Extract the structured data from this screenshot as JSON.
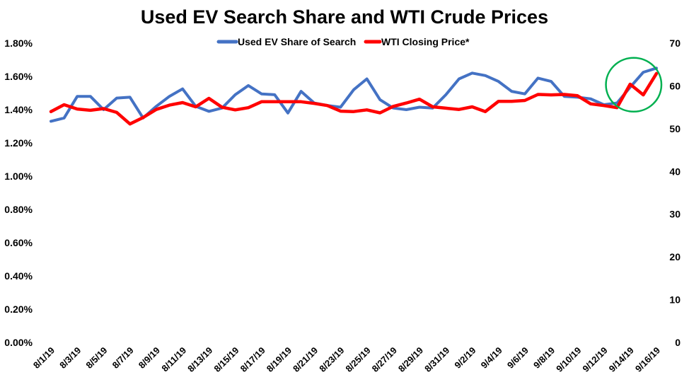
{
  "chart_data": {
    "type": "line",
    "title": "Used EV Search Share and WTI Crude Prices",
    "legend_position": "top",
    "grid": false,
    "x": [
      "8/1/19",
      "8/2/19",
      "8/3/19",
      "8/4/19",
      "8/5/19",
      "8/6/19",
      "8/7/19",
      "8/8/19",
      "8/9/19",
      "8/10/19",
      "8/11/19",
      "8/12/19",
      "8/13/19",
      "8/14/19",
      "8/15/19",
      "8/16/19",
      "8/17/19",
      "8/18/19",
      "8/19/19",
      "8/20/19",
      "8/21/19",
      "8/22/19",
      "8/23/19",
      "8/24/19",
      "8/25/19",
      "8/26/19",
      "8/27/19",
      "8/28/19",
      "8/29/19",
      "8/30/19",
      "8/31/19",
      "9/1/19",
      "9/2/19",
      "9/3/19",
      "9/4/19",
      "9/5/19",
      "9/6/19",
      "9/7/19",
      "9/8/19",
      "9/9/19",
      "9/10/19",
      "9/11/19",
      "9/12/19",
      "9/13/19",
      "9/14/19",
      "9/15/19",
      "9/16/19"
    ],
    "x_tick_labels": [
      "8/1/19",
      "8/3/19",
      "8/5/19",
      "8/7/19",
      "8/9/19",
      "8/11/19",
      "8/13/19",
      "8/15/19",
      "8/17/19",
      "8/19/19",
      "8/21/19",
      "8/23/19",
      "8/25/19",
      "8/27/19",
      "8/29/19",
      "8/31/19",
      "9/2/19",
      "9/4/19",
      "9/6/19",
      "9/8/19",
      "9/10/19",
      "9/12/19",
      "9/14/19",
      "9/16/19"
    ],
    "y_left": {
      "ylim": [
        0,
        1.8
      ],
      "ticks": [
        "0.00%",
        "0.20%",
        "0.40%",
        "0.60%",
        "0.80%",
        "1.00%",
        "1.20%",
        "1.40%",
        "1.60%",
        "1.80%"
      ]
    },
    "y_right": {
      "ylim": [
        0,
        70
      ],
      "ticks": [
        "0",
        "10",
        "20",
        "30",
        "40",
        "50",
        "60",
        "70"
      ]
    },
    "series": [
      {
        "name": "Used EV Share of Search",
        "axis": "left",
        "color": "#4472C4",
        "values": [
          1.33,
          1.35,
          1.48,
          1.48,
          1.4,
          1.47,
          1.475,
          1.35,
          1.42,
          1.48,
          1.525,
          1.42,
          1.39,
          1.41,
          1.49,
          1.545,
          1.495,
          1.49,
          1.38,
          1.51,
          1.44,
          1.425,
          1.415,
          1.52,
          1.585,
          1.46,
          1.41,
          1.4,
          1.415,
          1.41,
          1.49,
          1.585,
          1.62,
          1.605,
          1.57,
          1.51,
          1.495,
          1.59,
          1.57,
          1.48,
          1.475,
          1.465,
          1.43,
          1.44,
          1.535,
          1.625,
          1.65
        ]
      },
      {
        "name": "WTI Closing Price*",
        "axis": "right",
        "color": "#FF0000",
        "values": [
          54.0,
          55.6,
          54.6,
          54.3,
          54.7,
          53.8,
          51.1,
          52.6,
          54.5,
          55.5,
          56.1,
          55.1,
          57.1,
          55.0,
          54.4,
          54.9,
          56.3,
          56.3,
          56.3,
          56.3,
          55.9,
          55.4,
          54.1,
          54.0,
          54.4,
          53.7,
          55.2,
          56.0,
          56.9,
          55.1,
          54.8,
          54.5,
          55.1,
          54.0,
          56.4,
          56.4,
          56.6,
          58.0,
          57.9,
          58.0,
          57.7,
          55.8,
          55.4,
          54.9,
          60.4,
          57.9,
          62.9
        ]
      }
    ],
    "annotations": [
      {
        "type": "circle",
        "color": "#00B050",
        "from_x": "9/12/19",
        "to_x": "9/16/19"
      }
    ]
  }
}
